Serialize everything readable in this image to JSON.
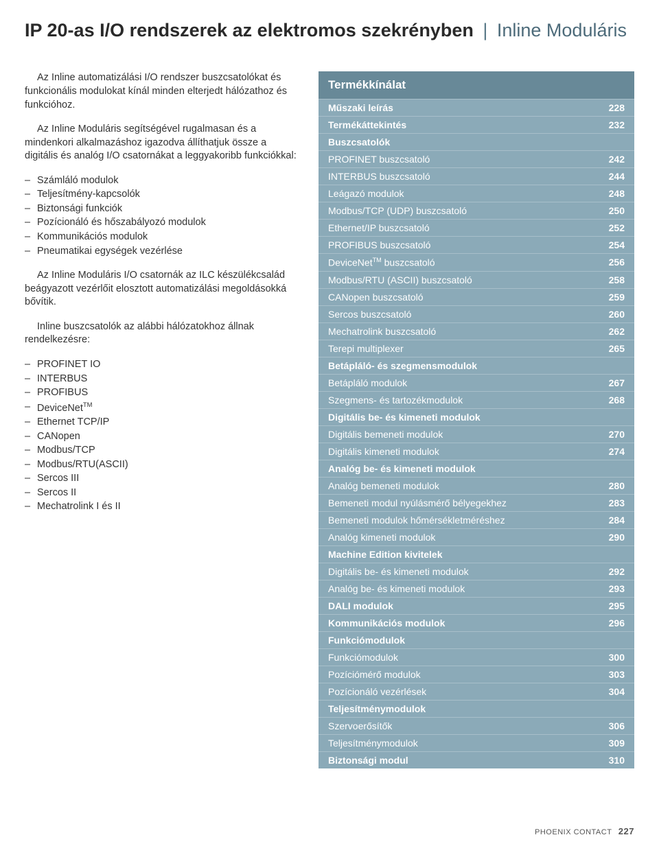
{
  "title": {
    "bold": "IP 20-as I/O rendszerek az elektromos szekrényben",
    "light": "Inline Moduláris"
  },
  "left": {
    "p1": "Az Inline automatizálási I/O rendszer buszcsatolókat és funkcionális modulokat kínál minden elterjedt hálózathoz és funkcióhoz.",
    "p2": "Az Inline Moduláris segítségével rugalmasan és a mindenkori alkalmazáshoz igazodva állíthatjuk össze a digitális és analóg I/O csatornákat a leggyakoribb funkciókkal:",
    "list1": [
      "Számláló modulok",
      "Teljesítmény-kapcsolók",
      "Biztonsági funkciók",
      "Pozícionáló és hőszabályozó modulok",
      "Kommunikációs modulok",
      "Pneumatikai egységek vezérlése"
    ],
    "p3": "Az Inline Moduláris I/O csatornák az ILC készülékcsalád beágyazott vezérlőit elosztott automatizálási megoldásokká bővítik.",
    "p4": "Inline buszcsatolók az alábbi hálózatokhoz állnak rendelkezésre:",
    "list2": [
      "PROFINET IO",
      "INTERBUS",
      "PROFIBUS",
      "DeviceNet<sup>TM</sup>",
      "Ethernet TCP/IP",
      "CANopen",
      "Modbus/TCP",
      "Modbus/RTU(ASCII)",
      "Sercos III",
      "Sercos II",
      "Mechatrolink I és II"
    ]
  },
  "toc": {
    "title": "Termékkínálat",
    "rows": [
      {
        "label": "Műszaki leírás",
        "page": "228",
        "header": true
      },
      {
        "label": "Termékáttekintés",
        "page": "232",
        "header": true
      },
      {
        "label": "Buszcsatolók",
        "page": "",
        "header": true
      },
      {
        "label": "PROFINET buszcsatoló",
        "page": "242",
        "header": false
      },
      {
        "label": "INTERBUS buszcsatoló",
        "page": "244",
        "header": false
      },
      {
        "label": "Leágazó modulok",
        "page": "248",
        "header": false
      },
      {
        "label": "Modbus/TCP (UDP) buszcsatoló",
        "page": "250",
        "header": false
      },
      {
        "label": "Ethernet/IP buszcsatoló",
        "page": "252",
        "header": false
      },
      {
        "label": "PROFIBUS buszcsatoló",
        "page": "254",
        "header": false
      },
      {
        "label": "DeviceNet<sup>TM</sup> buszcsatoló",
        "page": "256",
        "header": false
      },
      {
        "label": "Modbus/RTU (ASCII) buszcsatoló",
        "page": "258",
        "header": false
      },
      {
        "label": "CANopen buszcsatoló",
        "page": "259",
        "header": false
      },
      {
        "label": "Sercos buszcsatoló",
        "page": "260",
        "header": false
      },
      {
        "label": "Mechatrolink buszcsatoló",
        "page": "262",
        "header": false
      },
      {
        "label": "Terepi multiplexer",
        "page": "265",
        "header": false
      },
      {
        "label": "Betápláló- és szegmensmodulok",
        "page": "",
        "header": true
      },
      {
        "label": "Betápláló modulok",
        "page": "267",
        "header": false
      },
      {
        "label": "Szegmens- és tartozékmodulok",
        "page": "268",
        "header": false
      },
      {
        "label": "Digitális be- és kimeneti modulok",
        "page": "",
        "header": true
      },
      {
        "label": "Digitális bemeneti modulok",
        "page": "270",
        "header": false
      },
      {
        "label": "Digitális kimeneti modulok",
        "page": "274",
        "header": false
      },
      {
        "label": "Analóg be- és kimeneti modulok",
        "page": "",
        "header": true
      },
      {
        "label": "Analóg bemeneti modulok",
        "page": "280",
        "header": false
      },
      {
        "label": "Bemeneti modul nyúlásmérő bélyegekhez",
        "page": "283",
        "header": false
      },
      {
        "label": "Bemeneti modulok hőmérsékletméréshez",
        "page": "284",
        "header": false
      },
      {
        "label": "Analóg kimeneti modulok",
        "page": "290",
        "header": false
      },
      {
        "label": "Machine Edition kivitelek",
        "page": "",
        "header": true
      },
      {
        "label": "Digitális be- és kimeneti modulok",
        "page": "292",
        "header": false
      },
      {
        "label": "Analóg be- és kimeneti modulok",
        "page": "293",
        "header": false
      },
      {
        "label": "DALI modulok",
        "page": "295",
        "header": true
      },
      {
        "label": "Kommunikációs modulok",
        "page": "296",
        "header": true
      },
      {
        "label": "Funkciómodulok",
        "page": "",
        "header": true
      },
      {
        "label": "Funkciómodulok",
        "page": "300",
        "header": false
      },
      {
        "label": "Pozíciómérő modulok",
        "page": "303",
        "header": false
      },
      {
        "label": "Pozícionáló vezérlések",
        "page": "304",
        "header": false
      },
      {
        "label": "Teljesítménymodulok",
        "page": "",
        "header": true
      },
      {
        "label": "Szervoerősítők",
        "page": "306",
        "header": false
      },
      {
        "label": "Teljesítménymodulok",
        "page": "309",
        "header": false
      },
      {
        "label": "Biztonsági modul",
        "page": "310",
        "header": true
      }
    ]
  },
  "footer": {
    "brand": "PHOENIX CONTACT",
    "page": "227"
  }
}
